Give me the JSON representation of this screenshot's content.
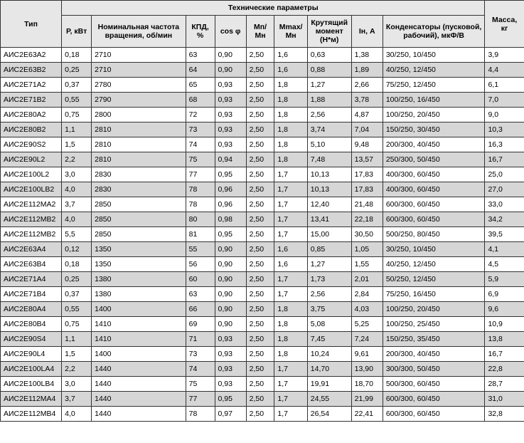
{
  "headers": {
    "group": "Технические параметры",
    "type": "Тип",
    "power": "Р, кВт",
    "rpm": "Номинальная частота вращения, об/мин",
    "kpd": "КПД, %",
    "cosphi": "cos φ",
    "mp_mn": "Мп/ Мн",
    "mmax_mn": "Мmax/ Мн",
    "torque": "Крутящий момент (Н*м)",
    "in": "Iн, А",
    "capacitors": "Конденсаторы (пусковой, рабочий), мкФ/В",
    "mass": "Масса, кг"
  },
  "rows": [
    {
      "type": "АИС2Е63А2",
      "p": "0,18",
      "rpm": "2710",
      "kpd": "63",
      "cos": "0,90",
      "mpmn": "2,50",
      "mmax": "1,6",
      "torque": "0,63",
      "in": "1,38",
      "cap": "30/250, 10/450",
      "mass": "3,9"
    },
    {
      "type": "АИС2Е63В2",
      "p": "0,25",
      "rpm": "2710",
      "kpd": "64",
      "cos": "0,90",
      "mpmn": "2,50",
      "mmax": "1,6",
      "torque": "0,88",
      "in": "1,89",
      "cap": "40/250, 12/450",
      "mass": "4,4"
    },
    {
      "type": "АИС2Е71А2",
      "p": "0,37",
      "rpm": "2780",
      "kpd": "65",
      "cos": "0,93",
      "mpmn": "2,50",
      "mmax": "1,8",
      "torque": "1,27",
      "in": "2,66",
      "cap": "75/250, 12/450",
      "mass": "6,1"
    },
    {
      "type": "АИС2Е71В2",
      "p": "0,55",
      "rpm": "2790",
      "kpd": "68",
      "cos": "0,93",
      "mpmn": "2,50",
      "mmax": "1,8",
      "torque": "1,88",
      "in": "3,78",
      "cap": "100/250, 16/450",
      "mass": "7,0"
    },
    {
      "type": "АИС2Е80А2",
      "p": "0,75",
      "rpm": "2800",
      "kpd": "72",
      "cos": "0,93",
      "mpmn": "2,50",
      "mmax": "1,8",
      "torque": "2,56",
      "in": "4,87",
      "cap": "100/250, 20/450",
      "mass": "9,0"
    },
    {
      "type": "АИС2Е80В2",
      "p": "1,1",
      "rpm": "2810",
      "kpd": "73",
      "cos": "0,93",
      "mpmn": "2,50",
      "mmax": "1,8",
      "torque": "3,74",
      "in": "7,04",
      "cap": "150/250, 30/450",
      "mass": "10,3"
    },
    {
      "type": "АИС2Е90S2",
      "p": "1,5",
      "rpm": "2810",
      "kpd": "74",
      "cos": "0,93",
      "mpmn": "2,50",
      "mmax": "1,8",
      "torque": "5,10",
      "in": "9,48",
      "cap": "200/300, 40/450",
      "mass": "16,3"
    },
    {
      "type": "АИС2Е90L2",
      "p": "2,2",
      "rpm": "2810",
      "kpd": "75",
      "cos": "0,94",
      "mpmn": "2,50",
      "mmax": "1,8",
      "torque": "7,48",
      "in": "13,57",
      "cap": "250/300, 50/450",
      "mass": "16,7"
    },
    {
      "type": "АИС2Е100L2",
      "p": "3,0",
      "rpm": "2830",
      "kpd": "77",
      "cos": "0,95",
      "mpmn": "2,50",
      "mmax": "1,7",
      "torque": "10,13",
      "in": "17,83",
      "cap": "400/300, 60/450",
      "mass": "25,0"
    },
    {
      "type": "АИС2Е100LB2",
      "p": "4,0",
      "rpm": "2830",
      "kpd": "78",
      "cos": "0,96",
      "mpmn": "2,50",
      "mmax": "1,7",
      "torque": "10,13",
      "in": "17,83",
      "cap": "400/300, 60/450",
      "mass": "27,0"
    },
    {
      "type": "АИС2Е112МА2",
      "p": "3,7",
      "rpm": "2850",
      "kpd": "78",
      "cos": "0,96",
      "mpmn": "2,50",
      "mmax": "1,7",
      "torque": "12,40",
      "in": "21,48",
      "cap": "600/300, 60/450",
      "mass": "33,0"
    },
    {
      "type": "АИС2Е112МВ2",
      "p": "4,0",
      "rpm": "2850",
      "kpd": "80",
      "cos": "0,98",
      "mpmn": "2,50",
      "mmax": "1,7",
      "torque": "13,41",
      "in": "22,18",
      "cap": "600/300, 60/450",
      "mass": "34,2"
    },
    {
      "type": "АИС2Е112МВ2",
      "p": "5,5",
      "rpm": "2850",
      "kpd": "81",
      "cos": "0,95",
      "mpmn": "2,50",
      "mmax": "1,7",
      "torque": "15,00",
      "in": "30,50",
      "cap": "500/250, 80/450",
      "mass": "39,5"
    },
    {
      "type": "АИС2Е63А4",
      "p": "0,12",
      "rpm": "1350",
      "kpd": "55",
      "cos": "0,90",
      "mpmn": "2,50",
      "mmax": "1,6",
      "torque": "0,85",
      "in": "1,05",
      "cap": "30/250, 10/450",
      "mass": "4,1"
    },
    {
      "type": "АИС2Е63В4",
      "p": "0,18",
      "rpm": "1350",
      "kpd": "56",
      "cos": "0,90",
      "mpmn": "2,50",
      "mmax": "1,6",
      "torque": "1,27",
      "in": "1,55",
      "cap": "40/250, 12/450",
      "mass": "4,5"
    },
    {
      "type": "АИС2Е71А4",
      "p": "0,25",
      "rpm": "1380",
      "kpd": "60",
      "cos": "0,90",
      "mpmn": "2,50",
      "mmax": "1,7",
      "torque": "1,73",
      "in": "2,01",
      "cap": "50/250, 12/450",
      "mass": "5,9"
    },
    {
      "type": "АИС2Е71В4",
      "p": "0,37",
      "rpm": "1380",
      "kpd": "63",
      "cos": "0,90",
      "mpmn": "2,50",
      "mmax": "1,7",
      "torque": "2,56",
      "in": "2,84",
      "cap": "75/250, 16/450",
      "mass": "6,9"
    },
    {
      "type": "АИС2Е80А4",
      "p": "0,55",
      "rpm": "1400",
      "kpd": "66",
      "cos": "0,90",
      "mpmn": "2,50",
      "mmax": "1,8",
      "torque": "3,75",
      "in": "4,03",
      "cap": "100/250, 20/450",
      "mass": "9,6"
    },
    {
      "type": "АИС2Е80В4",
      "p": "0,75",
      "rpm": "1410",
      "kpd": "69",
      "cos": "0,90",
      "mpmn": "2,50",
      "mmax": "1,8",
      "torque": "5,08",
      "in": "5,25",
      "cap": "100/250, 25/450",
      "mass": "10,9"
    },
    {
      "type": "АИС2Е90S4",
      "p": "1,1",
      "rpm": "1410",
      "kpd": "71",
      "cos": "0,93",
      "mpmn": "2,50",
      "mmax": "1,8",
      "torque": "7,45",
      "in": "7,24",
      "cap": "150/250, 35/450",
      "mass": "13,8"
    },
    {
      "type": "АИС2Е90L4",
      "p": "1,5",
      "rpm": "1400",
      "kpd": "73",
      "cos": "0,93",
      "mpmn": "2,50",
      "mmax": "1,8",
      "torque": "10,24",
      "in": "9,61",
      "cap": "200/300, 40/450",
      "mass": "16,7"
    },
    {
      "type": "АИС2Е100LA4",
      "p": "2,2",
      "rpm": "1440",
      "kpd": "74",
      "cos": "0,93",
      "mpmn": "2,50",
      "mmax": "1,7",
      "torque": "14,70",
      "in": "13,90",
      "cap": "300/300, 50/450",
      "mass": "22,8"
    },
    {
      "type": "АИС2Е100LB4",
      "p": "3,0",
      "rpm": "1440",
      "kpd": "75",
      "cos": "0,93",
      "mpmn": "2,50",
      "mmax": "1,7",
      "torque": "19,91",
      "in": "18,70",
      "cap": "500/300, 60/450",
      "mass": "28,7"
    },
    {
      "type": "АИС2Е112МА4",
      "p": "3,7",
      "rpm": "1440",
      "kpd": "77",
      "cos": "0,95",
      "mpmn": "2,50",
      "mmax": "1,7",
      "torque": "24,55",
      "in": "21,99",
      "cap": "600/300, 60/450",
      "mass": "31,0"
    },
    {
      "type": "АИС2Е112МВ4",
      "p": "4,0",
      "rpm": "1440",
      "kpd": "78",
      "cos": "0,97",
      "mpmn": "2,50",
      "mmax": "1,7",
      "torque": "26,54",
      "in": "22,41",
      "cap": "600/300, 60/450",
      "mass": "32,8"
    }
  ]
}
